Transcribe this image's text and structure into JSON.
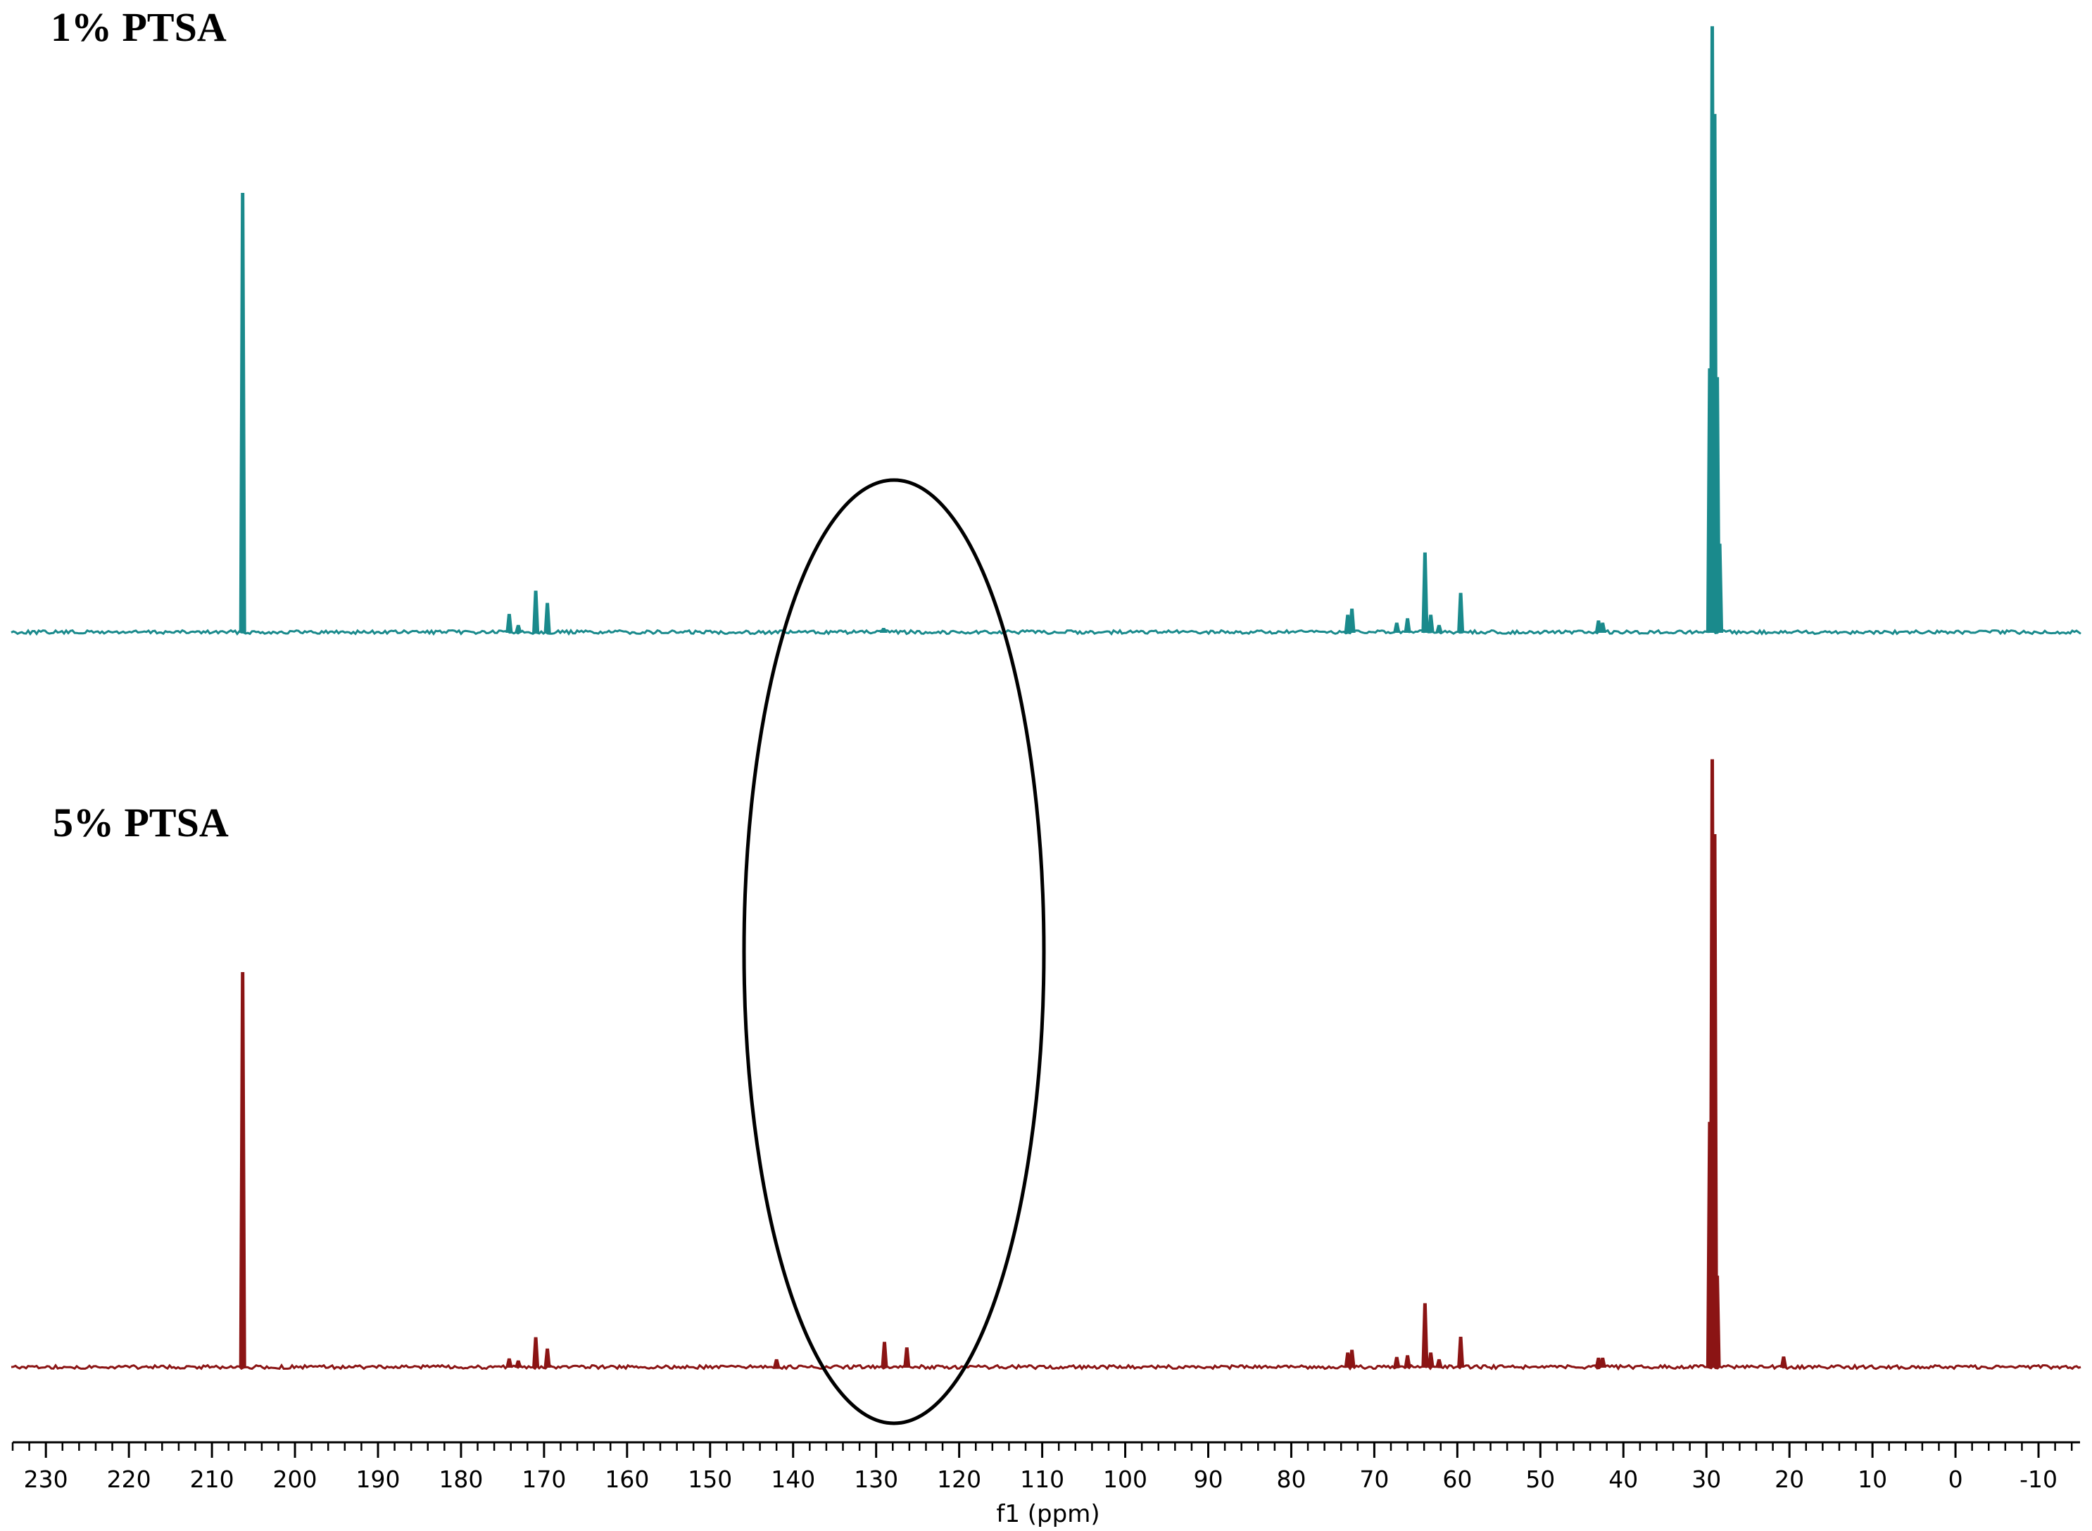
{
  "chart_data": {
    "type": "line",
    "title": "",
    "xlabel": "f1 (ppm)",
    "ylabel": "",
    "x_reversed": true,
    "xlim": [
      234,
      -15
    ],
    "x_ticks": [
      230,
      220,
      210,
      200,
      190,
      180,
      170,
      160,
      150,
      140,
      130,
      120,
      110,
      100,
      90,
      80,
      70,
      60,
      50,
      40,
      30,
      20,
      10,
      0,
      -10
    ],
    "grid": false,
    "legend": "none",
    "series": [
      {
        "name": "1% PTSA",
        "color": "#1a8a8c",
        "peaks": [
          {
            "ppm": 206.3,
            "height": 1.0
          },
          {
            "ppm": 174.2,
            "height": 0.04
          },
          {
            "ppm": 173.1,
            "height": 0.015
          },
          {
            "ppm": 171.0,
            "height": 0.093
          },
          {
            "ppm": 169.6,
            "height": 0.065
          },
          {
            "ppm": 129.1,
            "height": 0.008
          },
          {
            "ppm": 73.2,
            "height": 0.038
          },
          {
            "ppm": 72.7,
            "height": 0.052
          },
          {
            "ppm": 67.3,
            "height": 0.02
          },
          {
            "ppm": 66.0,
            "height": 0.03
          },
          {
            "ppm": 63.9,
            "height": 0.18
          },
          {
            "ppm": 63.2,
            "height": 0.038
          },
          {
            "ppm": 62.2,
            "height": 0.015
          },
          {
            "ppm": 59.6,
            "height": 0.088
          },
          {
            "ppm": 43.0,
            "height": 0.025
          },
          {
            "ppm": 42.5,
            "height": 0.02
          },
          {
            "ppm": 29.6,
            "height": 0.6
          },
          {
            "ppm": 29.3,
            "height": 1.38
          },
          {
            "ppm": 29.0,
            "height": 1.18
          },
          {
            "ppm": 28.7,
            "height": 0.58
          },
          {
            "ppm": 28.4,
            "height": 0.2
          }
        ]
      },
      {
        "name": "5% PTSA",
        "color": "#8b1414",
        "peaks": [
          {
            "ppm": 206.3,
            "height": 1.0
          },
          {
            "ppm": 174.2,
            "height": 0.02
          },
          {
            "ppm": 173.1,
            "height": 0.015
          },
          {
            "ppm": 171.0,
            "height": 0.074
          },
          {
            "ppm": 169.6,
            "height": 0.045
          },
          {
            "ppm": 142.0,
            "height": 0.018
          },
          {
            "ppm": 129.0,
            "height": 0.062
          },
          {
            "ppm": 126.3,
            "height": 0.048
          },
          {
            "ppm": 73.2,
            "height": 0.035
          },
          {
            "ppm": 72.7,
            "height": 0.042
          },
          {
            "ppm": 67.3,
            "height": 0.024
          },
          {
            "ppm": 66.0,
            "height": 0.028
          },
          {
            "ppm": 63.9,
            "height": 0.16
          },
          {
            "ppm": 63.2,
            "height": 0.035
          },
          {
            "ppm": 62.2,
            "height": 0.018
          },
          {
            "ppm": 59.6,
            "height": 0.075
          },
          {
            "ppm": 43.0,
            "height": 0.022
          },
          {
            "ppm": 42.5,
            "height": 0.022
          },
          {
            "ppm": 29.6,
            "height": 0.62
          },
          {
            "ppm": 29.3,
            "height": 1.54
          },
          {
            "ppm": 29.0,
            "height": 1.35
          },
          {
            "ppm": 28.7,
            "height": 0.23
          },
          {
            "ppm": 20.7,
            "height": 0.025
          }
        ]
      }
    ],
    "annotations": [
      {
        "type": "ellipse",
        "center_ppm": 128,
        "x_span_ppm": [
          141,
          113
        ]
      }
    ]
  }
}
